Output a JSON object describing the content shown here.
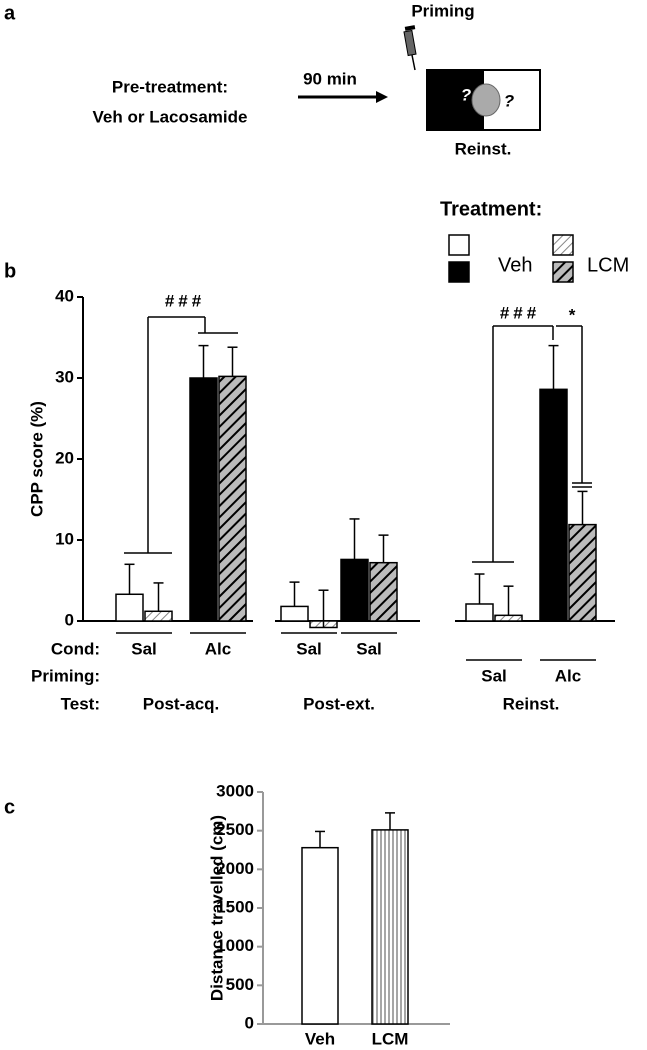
{
  "panel_a": {
    "label": "a",
    "priming": "Priming",
    "pretreatment": "Pre-treatment:",
    "drugs": "Veh or Lacosamide",
    "delay": "90 min",
    "marks": [
      "?",
      "?"
    ],
    "test": "Reinst."
  },
  "chart_data": [
    {
      "type": "bar",
      "panel": "b",
      "ylabel": "CPP score (%)",
      "ylim": [
        0,
        40
      ],
      "yticks": [
        0,
        10,
        20,
        30,
        40
      ],
      "legend_title": "Treatment:",
      "row_labels": [
        "Cond:",
        "Priming:",
        "Test:"
      ],
      "categories": [
        "Sal",
        "Alc",
        "Sal",
        "Sal",
        "Sal",
        "Alc"
      ],
      "category_rows": [
        0,
        0,
        0,
        0,
        1,
        1
      ],
      "sections": [
        "Post-acq.",
        "Post-ext.",
        "Reinst."
      ],
      "series": [
        {
          "name": "Veh",
          "hatch": false,
          "fills": [
            "#ffffff",
            "#000000",
            "#ffffff",
            "#000000",
            "#ffffff",
            "#000000"
          ],
          "values": [
            3.3,
            30,
            1.8,
            7.6,
            2.1,
            28.6
          ],
          "errors": [
            3.7,
            4,
            3,
            5,
            3.7,
            5.4
          ]
        },
        {
          "name": "LCM",
          "hatch": true,
          "fills": [
            "#ffffff",
            "#000000",
            "#ffffff",
            "#000000",
            "#ffffff",
            "#000000"
          ],
          "values": [
            1.2,
            30.2,
            -0.8,
            7.2,
            0.7,
            11.9
          ],
          "errors": [
            3.5,
            3.6,
            4.6,
            3.4,
            3.6,
            4.1
          ]
        }
      ],
      "annotations": [
        "###",
        "###",
        "*"
      ]
    },
    {
      "type": "bar",
      "panel": "c",
      "ylabel": "Distance travelled (cm)",
      "ylim": [
        0,
        3000
      ],
      "yticks": [
        0,
        500,
        1000,
        1500,
        2000,
        2500,
        3000
      ],
      "categories": [
        "Veh",
        "LCM"
      ],
      "values": [
        2280,
        2510
      ],
      "errors": [
        210,
        220
      ],
      "colors": [
        "#ffffff",
        "#ffffff"
      ],
      "patterns": [
        "none",
        "vertical"
      ]
    }
  ]
}
